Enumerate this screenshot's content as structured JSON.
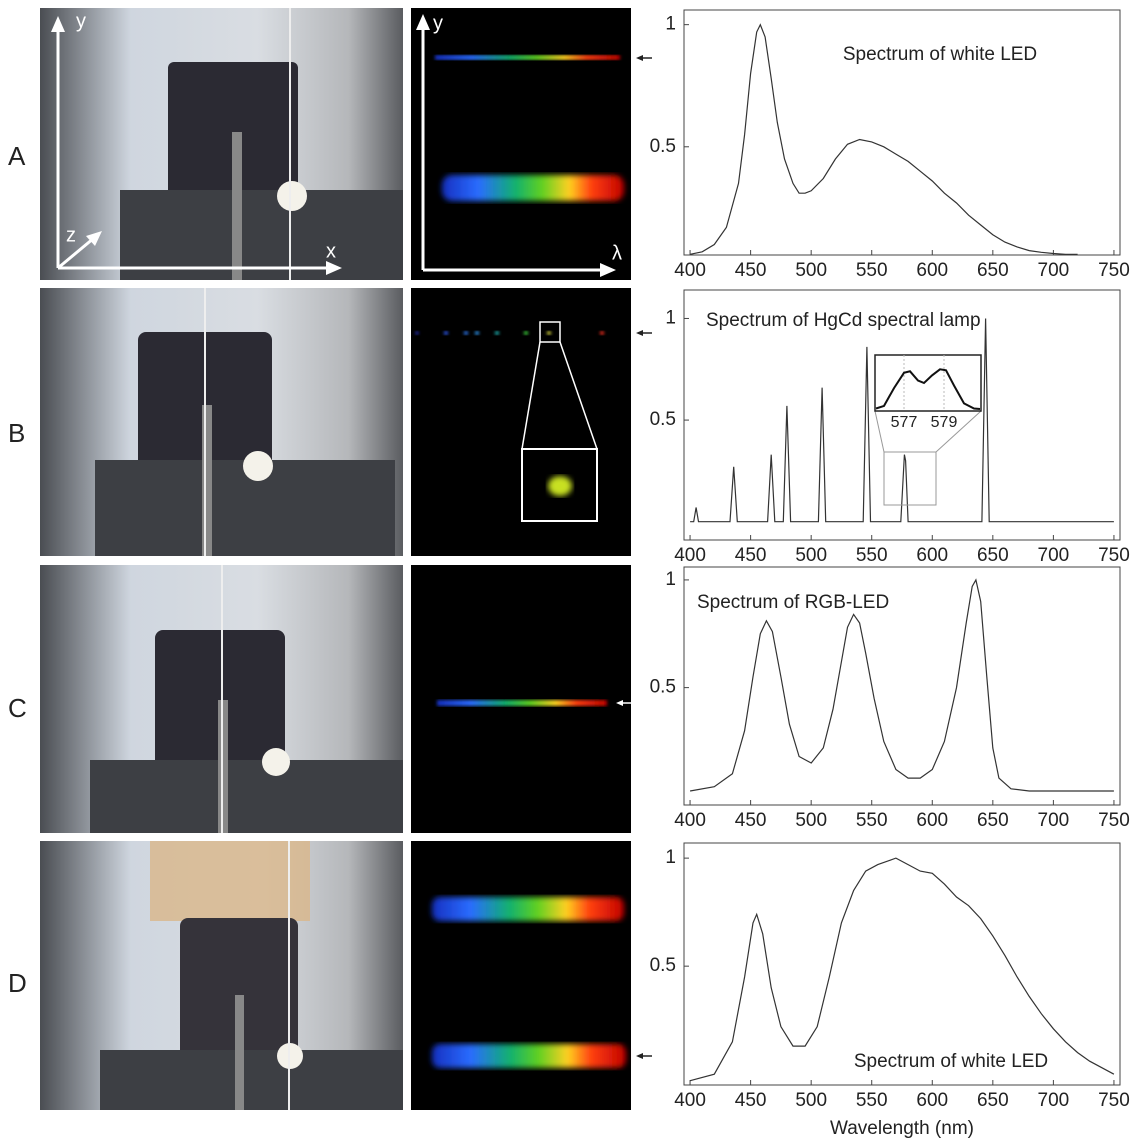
{
  "panels": [
    {
      "label": "A",
      "photo_axes": [
        "y",
        "z",
        "x"
      ],
      "spectrum_axes": [
        "y",
        "λ"
      ]
    },
    {
      "label": "B"
    },
    {
      "label": "C"
    },
    {
      "label": "D"
    }
  ],
  "chart_data": [
    {
      "type": "line",
      "title": "Spectrum of white LED",
      "color": "#333333",
      "x": [
        400,
        410,
        420,
        430,
        440,
        445,
        450,
        455,
        458,
        462,
        467,
        472,
        478,
        485,
        490,
        495,
        500,
        510,
        520,
        530,
        540,
        550,
        560,
        570,
        580,
        590,
        600,
        610,
        620,
        630,
        640,
        650,
        660,
        670,
        680,
        690,
        700,
        710,
        720
      ],
      "values": [
        0.06,
        0.07,
        0.1,
        0.17,
        0.35,
        0.55,
        0.8,
        0.97,
        1.0,
        0.95,
        0.78,
        0.6,
        0.45,
        0.35,
        0.31,
        0.31,
        0.32,
        0.37,
        0.45,
        0.51,
        0.53,
        0.52,
        0.5,
        0.47,
        0.44,
        0.4,
        0.36,
        0.31,
        0.27,
        0.22,
        0.18,
        0.14,
        0.11,
        0.09,
        0.075,
        0.068,
        0.063,
        0.06,
        0.06
      ],
      "xlim": [
        395,
        755
      ],
      "ylim": [
        0.057,
        1.06
      ],
      "xticks": [
        400,
        450,
        500,
        550,
        600,
        650,
        700,
        750
      ],
      "yticks": [
        0.5,
        1
      ]
    },
    {
      "type": "line",
      "title": "Spectrum of HgCd spectral lamp",
      "color": "#333333",
      "x": [
        400,
        403,
        405,
        407,
        433,
        436,
        439,
        464,
        467,
        470,
        477,
        480,
        483,
        506,
        509,
        512,
        543,
        546,
        549,
        574,
        577,
        578,
        580,
        641,
        644,
        647,
        750
      ],
      "values": [
        0,
        0,
        0.07,
        0,
        0,
        0.27,
        0,
        0,
        0.33,
        0,
        0,
        0.57,
        0,
        0,
        0.66,
        0,
        0,
        0.86,
        0,
        0,
        0.33,
        0.3,
        0,
        0,
        1.0,
        0,
        0
      ],
      "xlim": [
        395,
        755
      ],
      "ylim": [
        -0.09,
        1.14
      ],
      "xticks": [
        400,
        450,
        500,
        550,
        600,
        650,
        700,
        750
      ],
      "yticks": [
        0.5,
        1
      ],
      "inset": {
        "x": [
          575.6,
          576,
          576.5,
          577,
          577.3,
          577.7,
          578,
          578.4,
          578.8,
          579.1,
          579.5,
          580,
          580.5,
          580.8
        ],
        "values": [
          0.05,
          0.1,
          0.45,
          0.75,
          0.78,
          0.6,
          0.55,
          0.7,
          0.82,
          0.8,
          0.5,
          0.15,
          0.05,
          0.04
        ],
        "xlim": [
          575.55,
          580.85
        ],
        "ylim": [
          0,
          1.1
        ],
        "xticks": [
          577,
          579
        ]
      }
    },
    {
      "type": "line",
      "title": "Spectrum of RGB-LED",
      "color": "#333333",
      "x": [
        400,
        420,
        435,
        445,
        452,
        458,
        463,
        468,
        475,
        482,
        490,
        500,
        510,
        518,
        525,
        530,
        535,
        540,
        545,
        552,
        560,
        570,
        580,
        590,
        600,
        610,
        620,
        628,
        633,
        636,
        640,
        645,
        650,
        655,
        665,
        680,
        700,
        750
      ],
      "values": [
        0.02,
        0.04,
        0.1,
        0.3,
        0.55,
        0.75,
        0.81,
        0.76,
        0.55,
        0.33,
        0.18,
        0.15,
        0.22,
        0.4,
        0.62,
        0.78,
        0.84,
        0.8,
        0.66,
        0.45,
        0.25,
        0.12,
        0.08,
        0.08,
        0.12,
        0.25,
        0.5,
        0.8,
        0.97,
        1.0,
        0.9,
        0.55,
        0.22,
        0.08,
        0.03,
        0.02,
        0.02,
        0.02
      ],
      "xlim": [
        395,
        755
      ],
      "ylim": [
        -0.045,
        1.06
      ],
      "xticks": [
        400,
        450,
        500,
        550,
        600,
        650,
        700,
        750
      ],
      "yticks": [
        0.5,
        1
      ]
    },
    {
      "type": "line",
      "title": "Spectrum of white LED",
      "color": "#333333",
      "x_label": "Wavelength (nm)",
      "x": [
        400,
        420,
        435,
        445,
        452,
        455,
        460,
        467,
        475,
        485,
        495,
        505,
        515,
        525,
        535,
        545,
        555,
        565,
        570,
        580,
        590,
        600,
        610,
        620,
        630,
        640,
        650,
        660,
        670,
        680,
        690,
        700,
        710,
        720,
        730,
        740,
        750
      ],
      "values": [
        -0.03,
        0.0,
        0.15,
        0.45,
        0.7,
        0.74,
        0.65,
        0.4,
        0.22,
        0.13,
        0.13,
        0.22,
        0.45,
        0.7,
        0.85,
        0.94,
        0.97,
        0.99,
        1.0,
        0.97,
        0.94,
        0.93,
        0.88,
        0.82,
        0.78,
        0.72,
        0.64,
        0.55,
        0.45,
        0.36,
        0.28,
        0.21,
        0.15,
        0.1,
        0.06,
        0.03,
        0.0
      ],
      "xlim": [
        395,
        755
      ],
      "ylim": [
        -0.05,
        1.07
      ],
      "xticks": [
        400,
        450,
        500,
        550,
        600,
        650,
        700,
        750
      ],
      "yticks": [
        0.5,
        1
      ]
    }
  ]
}
